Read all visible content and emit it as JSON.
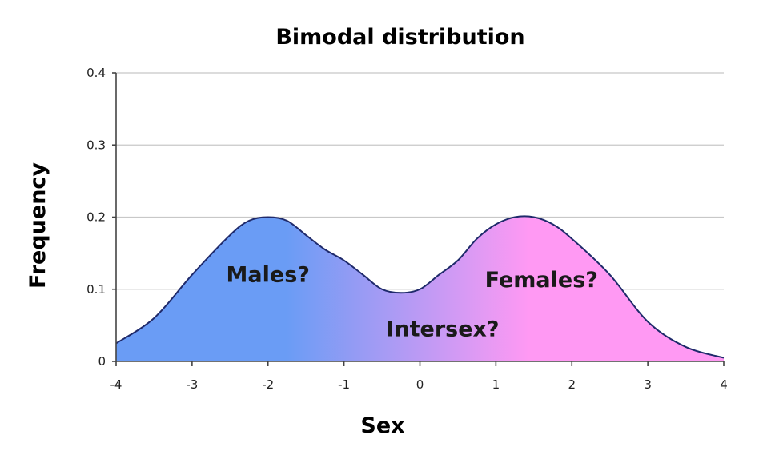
{
  "chart_data": {
    "type": "area",
    "title": "Bimodal distribution",
    "xlabel": "Sex",
    "ylabel": "Frequency",
    "xlim": [
      -4,
      4
    ],
    "ylim": [
      0,
      0.4
    ],
    "x_ticks": [
      -4,
      -3,
      -2,
      -1,
      0,
      1,
      2,
      3,
      4
    ],
    "x_tick_labels": [
      "-4",
      "-3",
      "-2",
      "-1",
      "0",
      "1",
      "2",
      "3",
      "4"
    ],
    "y_ticks": [
      0,
      0.1,
      0.2,
      0.3,
      0.4
    ],
    "y_tick_labels": [
      "0",
      "0.1",
      "0.2",
      "0.3",
      "0.4"
    ],
    "grid": true,
    "series": [
      {
        "x": [
          -4,
          -3.5,
          -3,
          -2.5,
          -2.25,
          -2,
          -1.75,
          -1.5,
          -1.25,
          -1,
          -0.75,
          -0.5,
          -0.25,
          0,
          0.25,
          0.5,
          0.75,
          1,
          1.25,
          1.5,
          1.75,
          2,
          2.5,
          3,
          3.5,
          4
        ],
        "y": [
          0.025,
          0.06,
          0.12,
          0.175,
          0.195,
          0.2,
          0.195,
          0.175,
          0.155,
          0.14,
          0.12,
          0.1,
          0.095,
          0.1,
          0.12,
          0.14,
          0.17,
          0.19,
          0.2,
          0.2,
          0.19,
          0.17,
          0.12,
          0.055,
          0.02,
          0.005
        ]
      }
    ],
    "fill_gradient": {
      "left_color": "#6a9cf5",
      "right_color": "#ff99f3"
    },
    "line_color": "#1f2a6b",
    "annotations": [
      {
        "text": "Males?",
        "x": -2,
        "y": 0.12
      },
      {
        "text": "Intersex?",
        "x": 0.3,
        "y": 0.045
      },
      {
        "text": "Females?",
        "x": 1.6,
        "y": 0.113
      }
    ]
  }
}
